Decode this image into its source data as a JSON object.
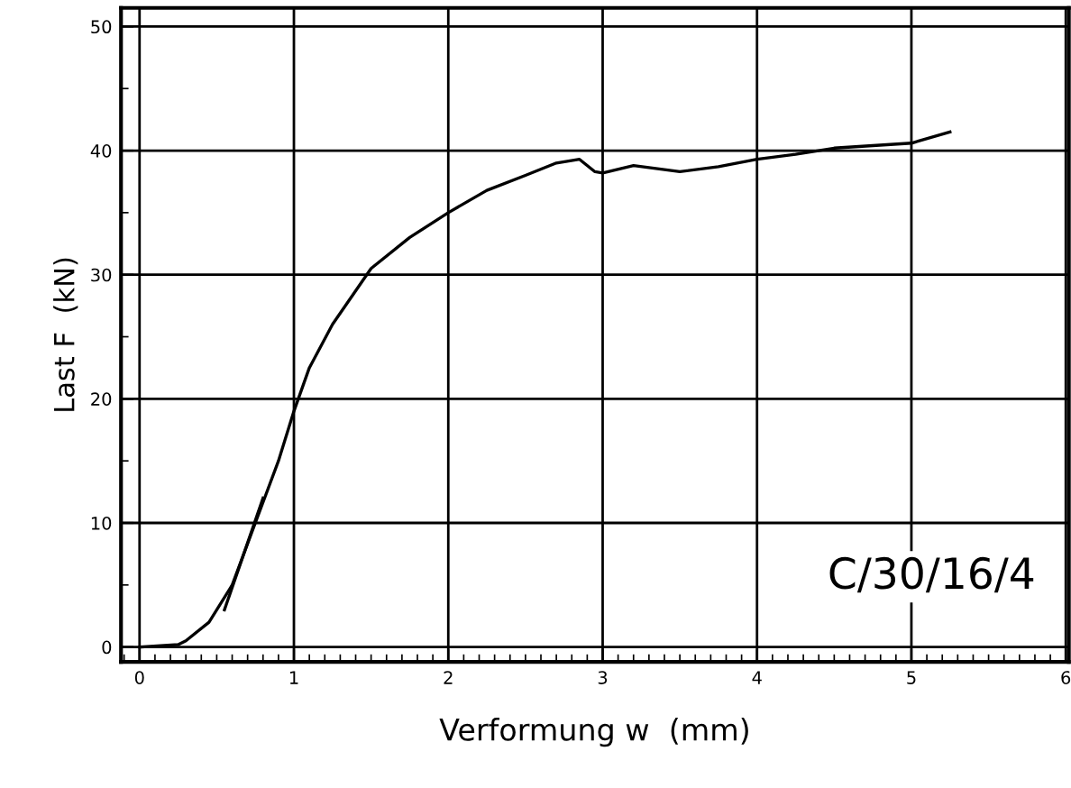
{
  "chart_data": {
    "type": "line",
    "xlabel": "Verformung w  (mm)",
    "ylabel": "Last F  (kN)",
    "series": [
      {
        "color": "#000000",
        "x": [
          0,
          0.25,
          0.3,
          0.45,
          0.6,
          0.75,
          0.9,
          1.0,
          1.1,
          1.25,
          1.5,
          1.75,
          2.0,
          2.25,
          2.5,
          2.7,
          2.85,
          2.95,
          3.0,
          3.2,
          3.5,
          3.75,
          4.0,
          4.25,
          4.5,
          5.0,
          5.25
        ],
        "values": [
          0,
          0.2,
          0.5,
          2,
          5,
          10,
          15,
          19,
          22.5,
          26,
          30.5,
          33,
          35,
          36.8,
          38,
          39,
          39.3,
          38.3,
          38.2,
          38.8,
          38.3,
          38.7,
          39.3,
          39.7,
          40.2,
          40.6,
          41.5
        ]
      },
      {
        "color": "#000000",
        "x": [
          0.55,
          0.8
        ],
        "values": [
          3,
          12
        ]
      }
    ],
    "xlim": [
      -0.12,
      6.02
    ],
    "ylim": [
      -1.2,
      51.5
    ],
    "xticks": [
      0,
      1,
      2,
      3,
      4,
      5,
      6
    ],
    "yticks": [
      0,
      10,
      20,
      30,
      40,
      50
    ],
    "grid": true,
    "marker": "none",
    "line_style": "solid",
    "annotations": [
      "C/30/16/4"
    ]
  }
}
